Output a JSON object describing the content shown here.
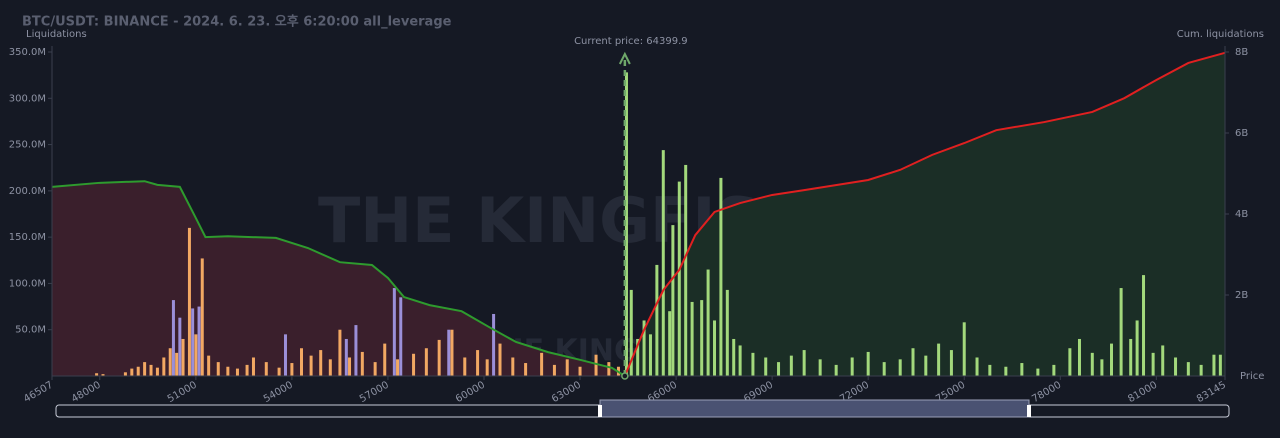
{
  "chart_data": {
    "type": "bar",
    "title": "BTC/USDT: BINANCE - 2024. 6. 23. 오후 6:20:00 all_leverage",
    "y_label": "Liquidations",
    "y2_label": "Cum. liquidations",
    "x_label": "Price",
    "watermark": [
      "THE KINGFISHER",
      ".IO"
    ],
    "current_price": 64399.9,
    "current_price_label": "Current price: 64399.9",
    "xlim": [
      46507,
      83145
    ],
    "xticks": [
      46507,
      48000,
      51000,
      54000,
      57000,
      60000,
      63000,
      66000,
      69000,
      72000,
      75000,
      78000,
      81000,
      83145
    ],
    "ylim": [
      0,
      350
    ],
    "yticks": [
      {
        "value": 50,
        "label": "50.0M"
      },
      {
        "value": 100,
        "label": "100.0M"
      },
      {
        "value": 150,
        "label": "150.0M"
      },
      {
        "value": 200,
        "label": "200.0M"
      },
      {
        "value": 250,
        "label": "250.0M"
      },
      {
        "value": 300,
        "label": "300.0M"
      },
      {
        "value": 350,
        "label": "350.0M"
      }
    ],
    "y2lim": [
      0,
      8
    ],
    "y2ticks": [
      {
        "value": 2,
        "label": "2B"
      },
      {
        "value": 4,
        "label": "4B"
      },
      {
        "value": 6,
        "label": "6B"
      },
      {
        "value": 8,
        "label": "8B"
      }
    ],
    "series": [
      {
        "color": "#f2a863",
        "x": [
          47900,
          48100,
          48800,
          49000,
          49200,
          49400,
          49600,
          49800,
          50000,
          50200,
          50400,
          50600,
          50800,
          51000,
          51200,
          51400,
          51700,
          52000,
          52300,
          52600,
          52800,
          53200,
          53600,
          54000,
          54300,
          54600,
          54900,
          55200,
          55500,
          55800,
          56200,
          56600,
          56900,
          57300,
          57800,
          58200,
          58600,
          59000,
          59400,
          59800,
          60100,
          60500,
          60900,
          61300,
          61800,
          62200,
          62600,
          63000,
          63500,
          63900,
          64200
        ],
        "values": [
          3,
          2,
          4,
          8,
          10,
          15,
          12,
          9,
          20,
          30,
          25,
          40,
          160,
          45,
          127,
          22,
          15,
          10,
          8,
          12,
          20,
          15,
          9,
          14,
          30,
          22,
          28,
          18,
          50,
          20,
          26,
          15,
          35,
          18,
          24,
          30,
          39,
          50,
          20,
          28,
          18,
          35,
          20,
          14,
          25,
          12,
          18,
          10,
          23,
          15,
          10
        ]
      },
      {
        "color": "#9b8fd8",
        "x": [
          50300,
          50500,
          50900,
          51100,
          53800,
          55700,
          56000,
          57200,
          57400,
          58900,
          60300
        ],
        "values": [
          82,
          63,
          73,
          75,
          45,
          40,
          55,
          95,
          85,
          50,
          67
        ]
      },
      {
        "color": "#a3d97c",
        "x": [
          64450,
          64600,
          64800,
          65000,
          65200,
          65400,
          65600,
          65800,
          65900,
          66100,
          66300,
          66500,
          66800,
          67000,
          67200,
          67400,
          67600,
          67800,
          68000,
          68400,
          68800,
          69200,
          69600,
          70000,
          70500,
          71000,
          71500,
          72000,
          72500,
          73000,
          73400,
          73800,
          74200,
          74600,
          75000,
          75400,
          75800,
          76300,
          76800,
          77300,
          77800,
          78300,
          78600,
          79000,
          79300,
          79600,
          79900,
          80200,
          80400,
          80600,
          80900,
          81200,
          81600,
          82000,
          82400,
          82800,
          83000
        ],
        "values": [
          328,
          93,
          40,
          60,
          45,
          120,
          244,
          70,
          163,
          210,
          228,
          80,
          82,
          115,
          60,
          214,
          93,
          40,
          33,
          25,
          20,
          15,
          22,
          28,
          18,
          12,
          20,
          26,
          15,
          18,
          30,
          22,
          35,
          28,
          58,
          20,
          12,
          10,
          14,
          8,
          12,
          30,
          40,
          25,
          18,
          35,
          95,
          40,
          60,
          109,
          25,
          33,
          20,
          15,
          12,
          23,
          23
        ]
      }
    ],
    "lines": [
      {
        "color": "#2e9b2e",
        "fill": "#3a1f2c",
        "axis": "y2",
        "x": [
          46507,
          48000,
          49400,
          49800,
          50500,
          51000,
          51300,
          52000,
          53500,
          54500,
          55500,
          56500,
          57000,
          57500,
          58300,
          59300,
          60200,
          61000,
          62000,
          63000,
          64000,
          64400
        ],
        "values": [
          4.67,
          4.77,
          4.81,
          4.72,
          4.67,
          3.9,
          3.43,
          3.45,
          3.41,
          3.16,
          2.81,
          2.74,
          2.42,
          1.95,
          1.75,
          1.6,
          1.19,
          0.84,
          0.59,
          0.4,
          0.2,
          0
        ]
      },
      {
        "color": "#e02020",
        "fill": "#1b2e26",
        "axis": "y2",
        "x": [
          64400,
          65000,
          65600,
          66100,
          66600,
          67200,
          68000,
          69000,
          70000,
          72000,
          73000,
          74000,
          75000,
          76000,
          77500,
          79000,
          80000,
          81000,
          82000,
          83145
        ],
        "values": [
          0,
          1.14,
          2.12,
          2.62,
          3.48,
          4.05,
          4.27,
          4.47,
          4.59,
          4.84,
          5.09,
          5.46,
          5.75,
          6.07,
          6.27,
          6.52,
          6.86,
          7.31,
          7.73,
          7.98
        ]
      }
    ]
  }
}
